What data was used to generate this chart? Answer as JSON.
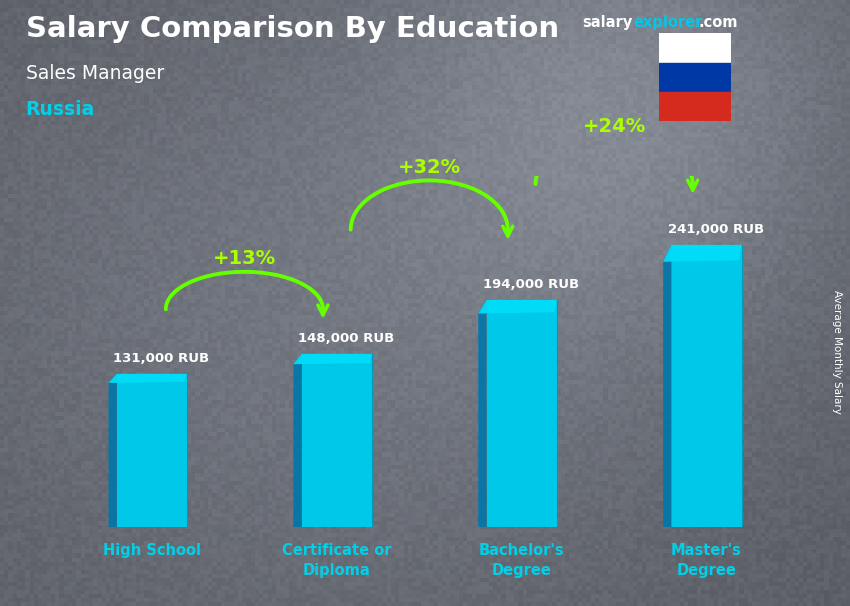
{
  "title_line1": "Salary Comparison By Education",
  "subtitle": "Sales Manager",
  "location": "Russia",
  "ylabel": "Average Monthly Salary",
  "categories": [
    "High School",
    "Certificate or\nDiploma",
    "Bachelor's\nDegree",
    "Master's\nDegree"
  ],
  "values": [
    131000,
    148000,
    194000,
    241000
  ],
  "value_labels": [
    "131,000 RUB",
    "148,000 RUB",
    "194,000 RUB",
    "241,000 RUB"
  ],
  "pct_labels": [
    "+13%",
    "+32%",
    "+24%"
  ],
  "bar_front_color": "#00c8e8",
  "bar_side_color": "#0077aa",
  "bar_top_color": "#00ddf8",
  "bg_color": "#5a6a78",
  "title_color": "#ffffff",
  "subtitle_color": "#ffffff",
  "location_color": "#00d0e8",
  "value_label_color": "#ffffff",
  "pct_color": "#aaff00",
  "arrow_color": "#66ff00",
  "xlabel_color": "#00d0e8",
  "ylim": [
    0,
    300000
  ],
  "bar_width": 0.38
}
